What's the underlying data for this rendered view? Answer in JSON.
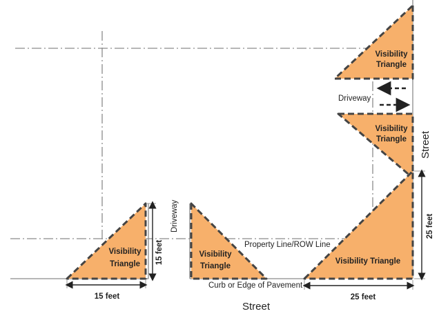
{
  "colors": {
    "triangle_fill": "#f7b06b",
    "outline": "#444444",
    "lines": "#8a8a8a"
  },
  "triangles": {
    "label_line1": "Visibility",
    "label_line2": "Triangle",
    "corner_label": "Visibility Triangle"
  },
  "labels": {
    "driveway_right": "Driveway",
    "driveway_left": "Driveway",
    "property_line": "Property Line/ROW Line",
    "curb": "Curb or Edge of Pavement",
    "street_bottom": "Street",
    "street_right": "Street"
  },
  "dimensions": {
    "left_horizontal": "15 feet",
    "left_vertical": "15 feet",
    "corner_horizontal": "25 feet",
    "corner_vertical": "25 feet"
  },
  "arrows": {
    "upper": "left",
    "lower": "right"
  }
}
